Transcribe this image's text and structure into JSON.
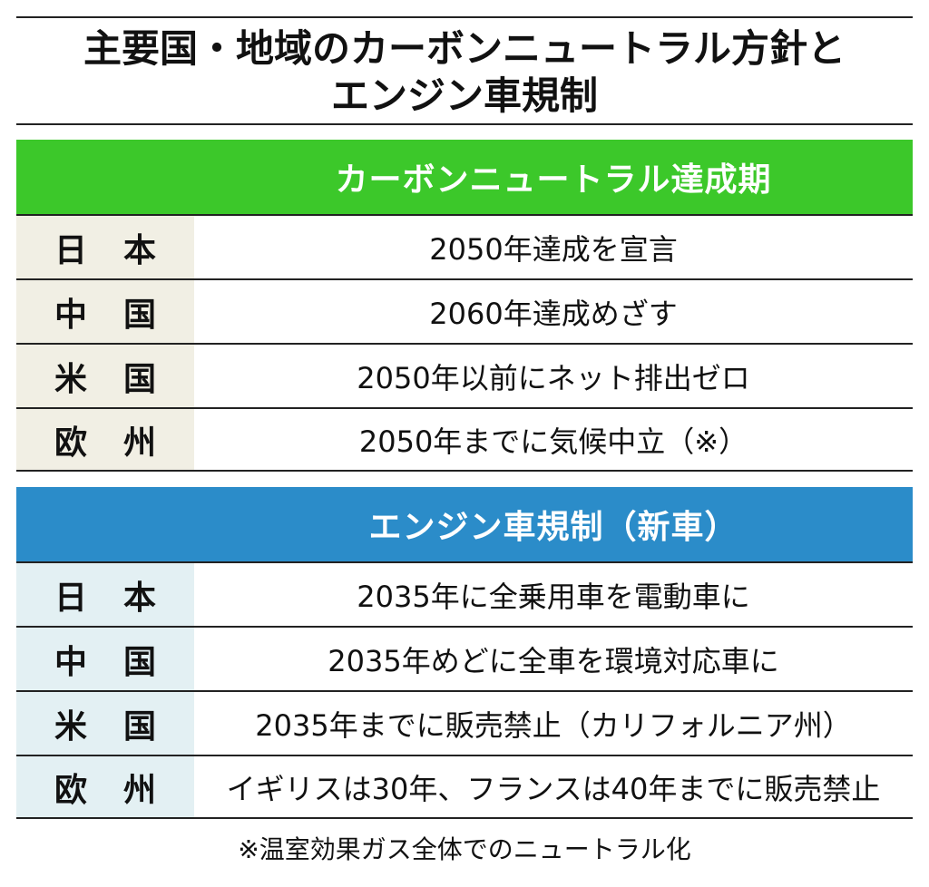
{
  "title": {
    "line1": "主要国・地域のカーボンニュートラル方針と",
    "line2": "エンジン車規制"
  },
  "colors": {
    "carbon_header": "#3cc82a",
    "carbon_label_bg": "#f1efe4",
    "engine_header": "#2b8cc9",
    "engine_label_bg": "#e3f0f3"
  },
  "carbon_section": {
    "header": "カーボンニュートラル達成期",
    "rows": [
      {
        "label": "日本",
        "value": "2050年達成を宣言"
      },
      {
        "label": "中国",
        "value": "2060年達成めざす"
      },
      {
        "label": "米国",
        "value": "2050年以前にネット排出ゼロ"
      },
      {
        "label": "欧州",
        "value": "2050年までに気候中立（※）"
      }
    ]
  },
  "engine_section": {
    "header": "エンジン車規制（新車）",
    "rows": [
      {
        "label": "日本",
        "value": "2035年に全乗用車を電動車に"
      },
      {
        "label": "中国",
        "value": "2035年めどに全車を環境対応車に"
      },
      {
        "label": "米国",
        "value": "2035年までに販売禁止（カリフォルニア州）"
      },
      {
        "label": "欧州",
        "value": "イギリスは30年、フランスは40年までに販売禁止"
      }
    ]
  },
  "footnote": "※温室効果ガス全体でのニュートラル化"
}
